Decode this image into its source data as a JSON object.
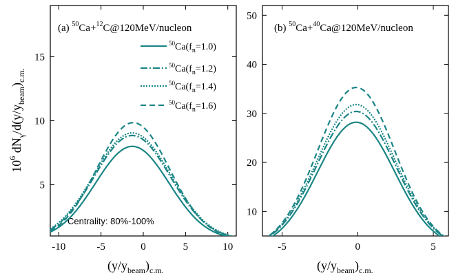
{
  "chart_data": [
    {
      "type": "line",
      "panel_label": "(a)",
      "system": {
        "proj_mass": "50",
        "proj": "Ca+",
        "targ_mass": "12",
        "targ": "C@120MeV/nucleon"
      },
      "ylabel": {
        "pre": "10",
        "exp": "6",
        "mid": " dN",
        "sub1": "γ",
        "mid2": "/d(y/y",
        "sub2": "beam",
        "post": ")",
        "sub3": "c.m."
      },
      "xlabel": {
        "pre": "(y/y",
        "sub1": "beam",
        "post": ")",
        "sub2": "c.m."
      },
      "xlim": [
        -11,
        11
      ],
      "ylim": [
        1,
        19
      ],
      "xticks": [
        -10,
        -5,
        0,
        5,
        10
      ],
      "yticks": [
        5,
        10,
        15
      ],
      "annotation": "Centrality: 80%-100%",
      "color": "#1b8585",
      "series": [
        {
          "nuc": "50",
          "el": "Ca(f",
          "sub": "n",
          "val": "=1.0)",
          "dash": "solid",
          "peak": 8.0,
          "center": -1.3,
          "sigma": 4.35,
          "base": 0.7
        },
        {
          "nuc": "50",
          "el": "Ca(f",
          "sub": "n",
          "val": "=1.2)",
          "dash": "dashdot",
          "peak": 8.85,
          "center": -1.3,
          "sigma": 4.5,
          "base": 0.7
        },
        {
          "nuc": "50",
          "el": "Ca(f",
          "sub": "n",
          "val": "=1.4)",
          "dash": "dotted",
          "peak": 9.05,
          "center": -1.3,
          "sigma": 4.55,
          "base": 0.7
        },
        {
          "nuc": "50",
          "el": "Ca(f",
          "sub": "n",
          "val": "=1.6)",
          "dash": "dashed",
          "peak": 9.85,
          "center": -1.2,
          "sigma": 4.3,
          "base": 0.7
        }
      ]
    },
    {
      "type": "line",
      "panel_label": "(b)",
      "system": {
        "proj_mass": "50",
        "proj": "Ca+",
        "targ_mass": "40",
        "targ": "Ca@120MeV/nucleon"
      },
      "xlim": [
        -6.3,
        6
      ],
      "ylim": [
        5,
        52
      ],
      "xticks": [
        -5,
        0,
        5
      ],
      "yticks": [
        10,
        20,
        30,
        40,
        50
      ],
      "color": "#1b8585",
      "series": [
        {
          "dash": "solid",
          "peak": 28.2,
          "center": -0.1,
          "sigma": 2.55,
          "base": 2.5
        },
        {
          "dash": "dashdot",
          "peak": 30.4,
          "center": -0.1,
          "sigma": 2.6,
          "base": 2.5
        },
        {
          "dash": "dotted",
          "peak": 31.8,
          "center": -0.1,
          "sigma": 2.6,
          "base": 2.5
        },
        {
          "dash": "dashed",
          "peak": 35.3,
          "center": -0.1,
          "sigma": 2.55,
          "base": 2.5
        }
      ]
    }
  ]
}
